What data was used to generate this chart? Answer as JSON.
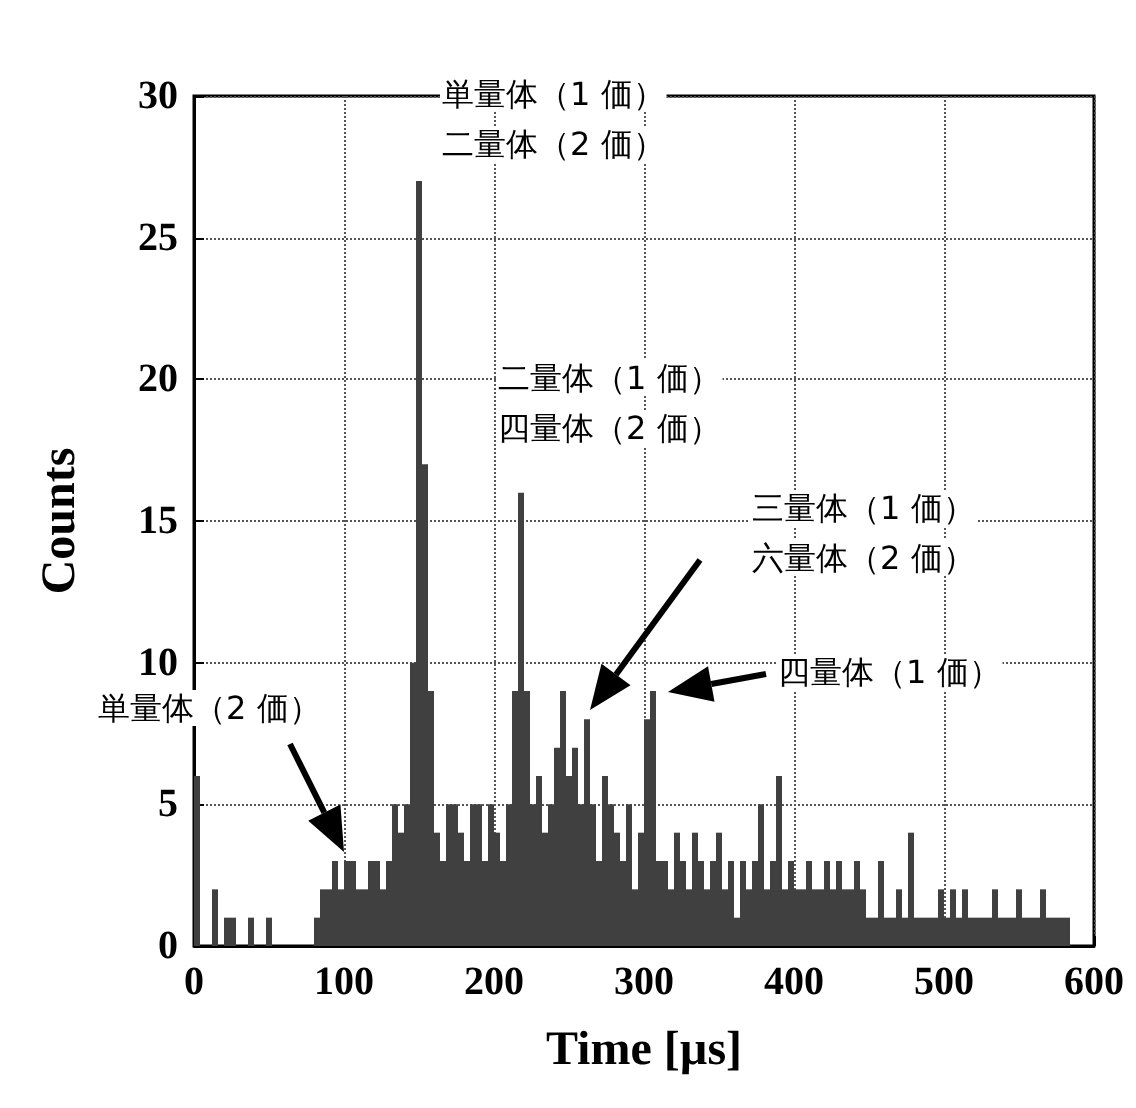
{
  "chart_data": {
    "type": "histogram",
    "xlabel": "Time [µs]",
    "ylabel": "Counts",
    "color": "#404040",
    "bins": [
      0,
      4,
      8,
      12,
      16,
      20,
      24,
      28,
      32,
      36,
      40,
      44,
      48,
      52,
      56,
      60,
      64,
      68,
      72,
      76,
      80,
      84,
      88,
      92,
      96,
      100,
      104,
      108,
      112,
      116,
      120,
      124,
      128,
      132,
      136,
      140,
      144,
      148,
      152,
      156,
      160,
      164,
      168,
      172,
      176,
      180,
      184,
      188,
      192,
      196,
      200,
      204,
      208,
      212,
      216,
      220,
      224,
      228,
      232,
      236,
      240,
      244,
      248,
      252,
      256,
      260,
      264,
      268,
      272,
      276,
      280,
      284,
      288,
      292,
      296,
      300,
      304,
      308,
      312,
      316,
      320,
      324,
      328,
      332,
      336,
      340,
      344,
      348,
      352,
      356,
      360,
      364,
      368,
      372,
      376,
      380,
      384,
      388,
      392,
      396,
      400,
      404,
      408,
      412,
      416,
      420,
      424,
      428,
      432,
      436,
      440,
      444,
      448,
      452,
      456,
      460,
      464,
      468,
      472,
      476,
      480,
      484,
      488,
      492,
      496,
      500,
      504,
      508,
      512,
      516,
      520,
      524,
      528,
      532,
      536,
      540,
      544,
      548,
      552,
      556,
      560,
      564,
      568,
      572,
      576,
      580,
      584,
      588
    ],
    "values": [
      6,
      0,
      0,
      2,
      0,
      1,
      1,
      0,
      0,
      1,
      0,
      0,
      1,
      0,
      0,
      0,
      0,
      0,
      0,
      0,
      1,
      2,
      2,
      3,
      2,
      3,
      3,
      2,
      2,
      3,
      3,
      2,
      3,
      5,
      4,
      5,
      10,
      27,
      17,
      9,
      4,
      3,
      5,
      5,
      4,
      3,
      5,
      5,
      3,
      5,
      4,
      3,
      5,
      9,
      16,
      9,
      5,
      6,
      4,
      5,
      7,
      9,
      6,
      7,
      5,
      8,
      5,
      3,
      6,
      5,
      4,
      3,
      5,
      2,
      4,
      8,
      9,
      3,
      3,
      2,
      4,
      3,
      2,
      4,
      3,
      2,
      3,
      4,
      2,
      3,
      1,
      3,
      2,
      3,
      5,
      2,
      3,
      6,
      2,
      3,
      2,
      2,
      3,
      2,
      2,
      3,
      2,
      3,
      2,
      2,
      3,
      2,
      1,
      1,
      3,
      1,
      1,
      2,
      1,
      4,
      1,
      1,
      1,
      1,
      2,
      1,
      2,
      1,
      2,
      1,
      1,
      1,
      1,
      2,
      1,
      1,
      1,
      2,
      1,
      1,
      1,
      2,
      1,
      1,
      1,
      1,
      0
    ],
    "xlim": [
      0,
      600
    ],
    "xticks": [
      0,
      100,
      200,
      300,
      400,
      500,
      600
    ],
    "ylim": [
      0,
      30
    ],
    "yticks": [
      0,
      5,
      10,
      15,
      20,
      25,
      30
    ],
    "grid": true,
    "annotations": [
      "単量体（1 価）",
      "二量体（2 価）",
      "二量体（1 価）",
      "四量体（2 価）",
      "三量体（1 価）",
      "六量体（2 価）",
      "四量体（1 価）",
      "単量体（2 価）"
    ]
  }
}
